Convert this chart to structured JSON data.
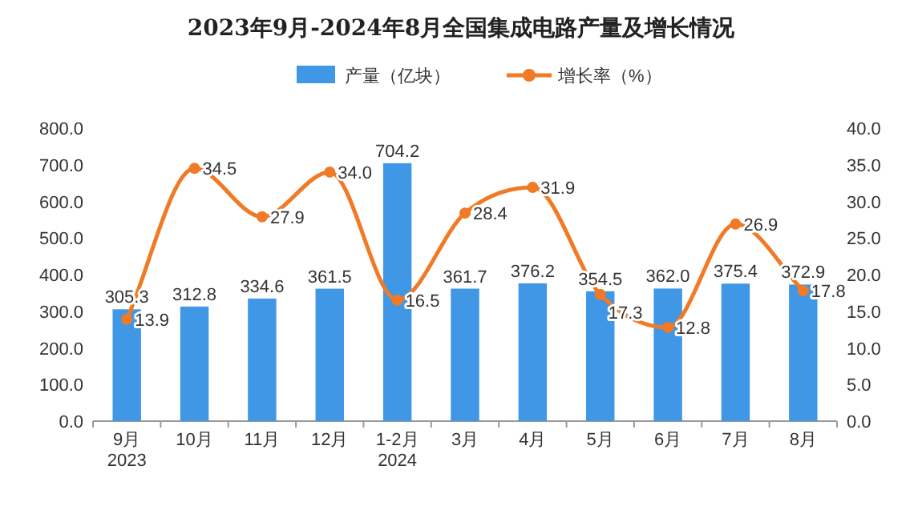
{
  "chart_data": {
    "type": "bar",
    "title": "2023年9月-2024年8月全国集成电路产量及增长情况",
    "categories": [
      "9月\n2023",
      "10月",
      "11月",
      "12月",
      "1-2月\n2024",
      "3月",
      "4月",
      "5月",
      "6月",
      "7月",
      "8月"
    ],
    "series": [
      {
        "name": "产量（亿块）",
        "color": "#3f97e6",
        "values": [
          305.3,
          312.8,
          334.6,
          361.5,
          704.2,
          361.7,
          376.2,
          354.5,
          362.0,
          375.4,
          372.9
        ],
        "value_labels": [
          "305.3",
          "312.8",
          "334.6",
          "361.5",
          "704.2",
          "361.7",
          "376.2",
          "354.5",
          "362.0",
          "375.4",
          "372.9"
        ]
      },
      {
        "name": "增长率（%）",
        "type": "line",
        "axis": "y2",
        "color": "#f07a26",
        "marker": "circle",
        "values": [
          13.9,
          34.5,
          27.9,
          34.0,
          16.5,
          28.4,
          31.9,
          17.3,
          12.8,
          26.9,
          17.8
        ],
        "value_labels": [
          "13.9",
          "34.5",
          "27.9",
          "34.0",
          "16.5",
          "28.4",
          "31.9",
          "17.3",
          "12.8",
          "26.9",
          "17.8"
        ]
      }
    ],
    "ylim": [
      0,
      800
    ],
    "yticks": [
      {
        "value": 0,
        "label": "0.0"
      },
      {
        "value": 100,
        "label": "100.0"
      },
      {
        "value": 200,
        "label": "200.0"
      },
      {
        "value": 300,
        "label": "300.0"
      },
      {
        "value": 400,
        "label": "400.0"
      },
      {
        "value": 500,
        "label": "500.0"
      },
      {
        "value": 600,
        "label": "600.0"
      },
      {
        "value": 700,
        "label": "700.0"
      },
      {
        "value": 800,
        "label": "800.0"
      }
    ],
    "y2lim": [
      0,
      40
    ],
    "y2ticks": [
      {
        "value": 0,
        "label": "0.0"
      },
      {
        "value": 5,
        "label": "5.0"
      },
      {
        "value": 10,
        "label": "10.0"
      },
      {
        "value": 15,
        "label": "15.0"
      },
      {
        "value": 20,
        "label": "20.0"
      },
      {
        "value": 25,
        "label": "25.0"
      },
      {
        "value": 30,
        "label": "30.0"
      },
      {
        "value": 35,
        "label": "35.0"
      },
      {
        "value": 40,
        "label": "40.0"
      }
    ],
    "legend": "top",
    "grid": false
  }
}
